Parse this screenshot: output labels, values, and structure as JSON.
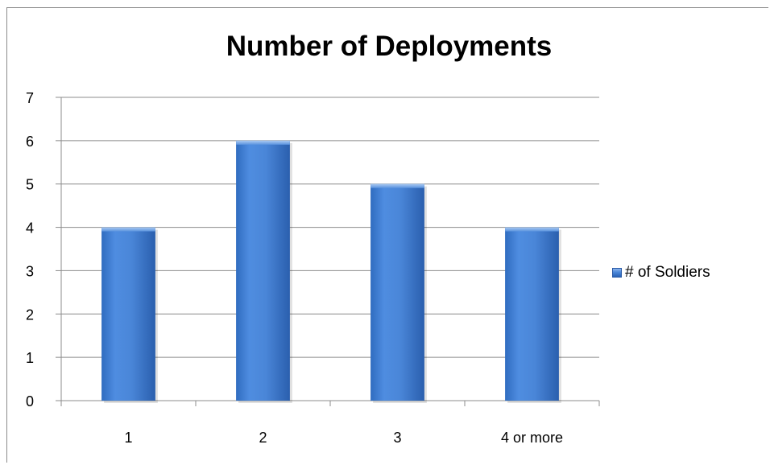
{
  "chart_data": {
    "type": "bar",
    "title": "Number of Deployments",
    "categories": [
      "1",
      "2",
      "3",
      "4 or more"
    ],
    "series": [
      {
        "name": "# of Soldiers",
        "values": [
          4,
          6,
          5,
          4
        ]
      }
    ],
    "xlabel": "",
    "ylabel": "",
    "ylim": [
      0,
      7
    ],
    "yticks": [
      "0",
      "1",
      "2",
      "3",
      "4",
      "5",
      "6",
      "7"
    ],
    "grid": true,
    "legend_position": "right",
    "colors": {
      "bar": "#4a86d8",
      "bar_dark": "#2a62b5",
      "bar_light": "#8bb4ec",
      "grid": "#8c8c8c"
    }
  }
}
